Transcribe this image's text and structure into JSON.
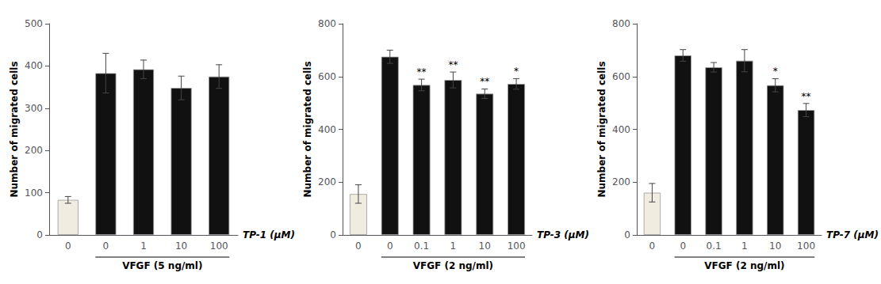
{
  "chart_data": [
    {
      "type": "bar",
      "ylabel": "Number of migrated cells",
      "xlabel": "TP-1 (μM)",
      "categories": [
        "0",
        "0",
        "1",
        "10",
        "100"
      ],
      "values": [
        83,
        383,
        392,
        348,
        375
      ],
      "errors": [
        8,
        47,
        22,
        28,
        28
      ],
      "colors": [
        "#f0ece0",
        "#111111",
        "#111111",
        "#111111",
        "#111111"
      ],
      "bar_annotations": [
        null,
        null,
        null,
        null,
        null
      ],
      "group": {
        "label": "VFGF (5 ng/ml)",
        "start": 1,
        "end": 4
      },
      "ylim": [
        0,
        500
      ],
      "yticks": [
        0,
        100,
        200,
        300,
        400,
        500
      ],
      "grid": false
    },
    {
      "type": "bar",
      "ylabel": "Number of migrated cells",
      "xlabel": "TP-3 (μM)",
      "categories": [
        "0",
        "0",
        "0.1",
        "1",
        "10",
        "100"
      ],
      "values": [
        155,
        675,
        568,
        587,
        535,
        572
      ],
      "errors": [
        35,
        25,
        22,
        30,
        18,
        20
      ],
      "colors": [
        "#f0ece0",
        "#111111",
        "#111111",
        "#111111",
        "#111111",
        "#111111"
      ],
      "bar_annotations": [
        null,
        null,
        "**",
        "**",
        "**",
        "*"
      ],
      "group": {
        "label": "VFGF (2 ng/ml)",
        "start": 1,
        "end": 5
      },
      "ylim": [
        0,
        800
      ],
      "yticks": [
        0,
        200,
        400,
        600,
        800
      ],
      "grid": false
    },
    {
      "type": "bar",
      "ylabel": "Number of migrated cells",
      "xlabel": "TP-7 (μM)",
      "categories": [
        "0",
        "0",
        "0.1",
        "1",
        "10",
        "100"
      ],
      "values": [
        160,
        680,
        635,
        660,
        567,
        473
      ],
      "errors": [
        35,
        22,
        18,
        42,
        25,
        25
      ],
      "colors": [
        "#f0ece0",
        "#111111",
        "#111111",
        "#111111",
        "#111111",
        "#111111"
      ],
      "bar_annotations": [
        null,
        null,
        null,
        null,
        "*",
        "**"
      ],
      "group": {
        "label": "VFGF (2 ng/ml)",
        "start": 1,
        "end": 5
      },
      "ylim": [
        0,
        800
      ],
      "yticks": [
        0,
        200,
        400,
        600,
        800
      ],
      "grid": false
    }
  ]
}
